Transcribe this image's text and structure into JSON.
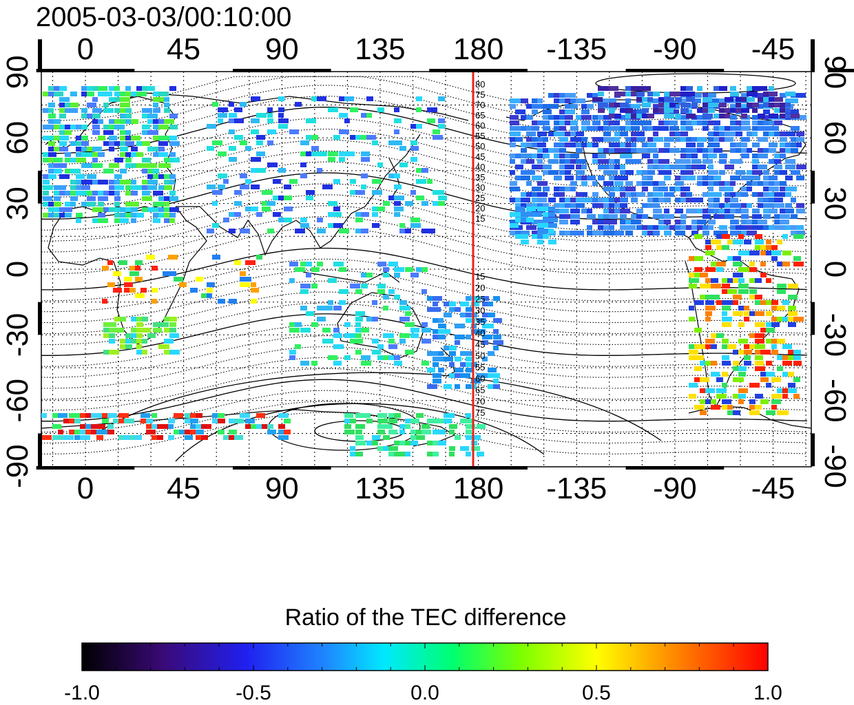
{
  "timestamp": "2005-03-03/00:10:00",
  "map": {
    "x_tick_labels": [
      "0",
      "45",
      "90",
      "135",
      "180",
      "-135",
      "-90",
      "-45"
    ],
    "y_tick_labels": [
      "90",
      "60",
      "30",
      "0",
      "-30",
      "-60",
      "-90"
    ],
    "meridian_line_color": "#e8231e",
    "magnetic_latitude_labels_north": [
      "80",
      "75",
      "70",
      "65",
      "60",
      "55",
      "50",
      "45",
      "40",
      "35",
      "30",
      "25",
      "20",
      "15"
    ],
    "magnetic_latitude_labels_south": [
      "15",
      "20",
      "25",
      "30",
      "35",
      "40",
      "45",
      "50",
      "55",
      "60",
      "65",
      "70",
      "75"
    ]
  },
  "colorbar": {
    "title": "Ratio of the TEC difference",
    "tick_labels": [
      "-1.0",
      "-0.5",
      "0.0",
      "0.5",
      "1.0"
    ],
    "range": [
      -1.0,
      1.0
    ]
  }
}
